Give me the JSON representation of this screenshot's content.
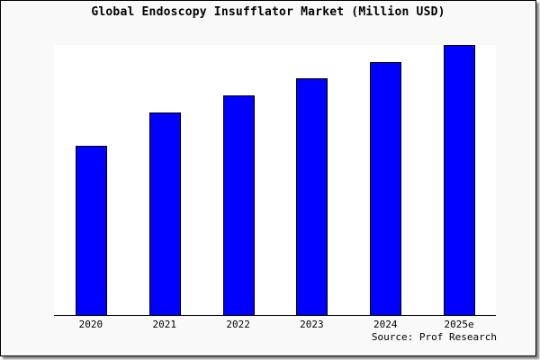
{
  "chart_data": {
    "type": "bar",
    "title": "Global Endoscopy Insufflator Market (Million USD)",
    "categories": [
      "2020",
      "2021",
      "2022",
      "2023",
      "2024",
      "2025e"
    ],
    "values": [
      188,
      225,
      244,
      263,
      281,
      300
    ],
    "ylim": [
      0,
      300
    ],
    "xlabel": "",
    "ylabel": "",
    "grid": false,
    "bar_color": "#0000ff",
    "source": "Source: Prof Research"
  }
}
